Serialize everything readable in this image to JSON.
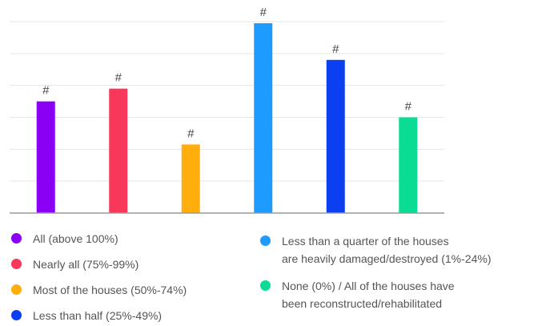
{
  "chart_data": {
    "type": "bar",
    "title": "",
    "xlabel": "",
    "ylabel": "",
    "grid": true,
    "legend_position": "bottom",
    "ylim": [
      0,
      6
    ],
    "categories": [
      "All (above 100%)",
      "Nearly all (75%-99%)",
      "Most of the houses (50%-74%)",
      "Less than a quarter of the houses are heavily damaged/destroyed (1%-24%)",
      "Less than half (25%-49%)",
      "None (0%) / All of the houses have been reconstructed/rehabilitated"
    ],
    "values": [
      3.5,
      3.9,
      2.15,
      5.95,
      4.8,
      3.0
    ],
    "data_labels": [
      "#",
      "#",
      "#",
      "#",
      "#",
      "#"
    ],
    "colors": [
      "#8a00f5",
      "#f7385a",
      "#ffae0d",
      "#1e9bff",
      "#0b3ff0",
      "#0bdc94"
    ]
  },
  "legend": [
    {
      "label": "All (above 100%)",
      "color": "#8a00f5"
    },
    {
      "label": "Nearly all (75%-99%)",
      "color": "#f7385a"
    },
    {
      "label": "Most of the houses (50%-74%)",
      "color": "#ffae0d"
    },
    {
      "label": "Less than half (25%-49%)",
      "color": "#0b3ff0"
    },
    {
      "label": "Less than a quarter of the houses\nare heavily damaged/destroyed (1%-24%)",
      "color": "#1e9bff"
    },
    {
      "label": "None (0%) / All of the houses have\nbeen reconstructed/rehabilitated",
      "color": "#0bdc94"
    }
  ]
}
